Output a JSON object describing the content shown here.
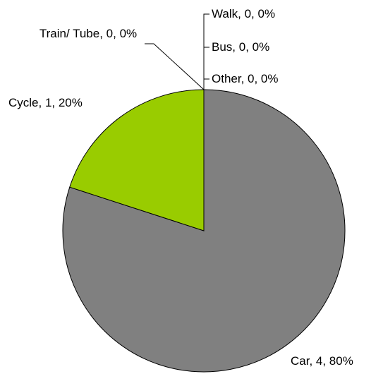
{
  "chart_data": {
    "type": "pie",
    "categories": [
      "Car",
      "Cycle",
      "Train/ Tube",
      "Walk",
      "Bus",
      "Other"
    ],
    "values": [
      4,
      1,
      0,
      0,
      0,
      0
    ],
    "value_labels": [
      "Car, 4, 80%",
      "Cycle, 1, 20%",
      "Train/ Tube, 0, 0%",
      "Walk, 0, 0%",
      "Bus, 0, 0%",
      "Other, 0, 0%"
    ],
    "colors": [
      "#808080",
      "#99cc00",
      "#9999ff",
      "#993366",
      "#ffffcc",
      "#ccffff"
    ]
  }
}
